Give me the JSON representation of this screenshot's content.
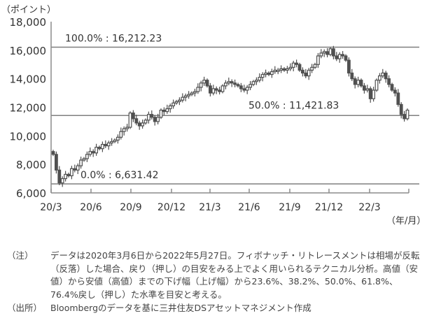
{
  "chart_data": {
    "type": "candlestick",
    "unit_label": "（ポイント）",
    "xlabel": "（年/月）",
    "ylim": [
      6000,
      18000
    ],
    "yticks": [
      6000,
      8000,
      10000,
      12000,
      14000,
      16000,
      18000
    ],
    "ytick_labels": [
      "6,000",
      "8,000",
      "10,000",
      "12,000",
      "14,000",
      "16,000",
      "18,000"
    ],
    "xtick_labels": [
      "20/3",
      "20/6",
      "20/9",
      "20/12",
      "21/3",
      "21/6",
      "21/9",
      "21/12",
      "22/3"
    ],
    "grid": false,
    "period": "weekly, 2020/3/6 – 2022/5/27 (approximate)",
    "closes": [
      8700,
      7600,
      6700,
      7000,
      7300,
      7200,
      7700,
      7600,
      7900,
      8300,
      8400,
      8700,
      8900,
      8800,
      9200,
      9100,
      9400,
      9300,
      9500,
      9600,
      9700,
      9900,
      10300,
      10500,
      10600,
      11600,
      11200,
      10900,
      10700,
      10900,
      11100,
      11500,
      11300,
      11000,
      11300,
      11800,
      11700,
      11900,
      12100,
      12300,
      12400,
      12500,
      12700,
      12800,
      12900,
      13000,
      13100,
      13400,
      13700,
      13900,
      13500,
      13000,
      13300,
      13200,
      13100,
      13500,
      13700,
      13800,
      13700,
      13600,
      13500,
      13300,
      13200,
      13400,
      13600,
      13800,
      13900,
      14100,
      14300,
      14400,
      14300,
      14500,
      14600,
      14600,
      14700,
      14600,
      14700,
      14800,
      15100,
      15000,
      14600,
      14400,
      14200,
      14600,
      14800,
      15000,
      15600,
      15800,
      15900,
      15700,
      16100,
      15600,
      15400,
      15700,
      15600,
      15300,
      14400,
      14000,
      13600,
      13900,
      13500,
      13200,
      13300,
      12600,
      13200,
      13900,
      14200,
      14400,
      14000,
      13600,
      13200,
      13000,
      12200,
      11500,
      11200,
      11800
    ],
    "levels": [
      {
        "value": 16212.23,
        "label": "100.0% : 16,212.23"
      },
      {
        "value": 11421.83,
        "label": "50.0% : 11,421.83"
      },
      {
        "value": 6631.42,
        "label": "0.0% : 6,631.42"
      }
    ],
    "colors": {
      "candle": "#505050",
      "line": "#7f7f7f",
      "axis": "#8c8c8c"
    }
  },
  "notes": {
    "note_label": "（注）",
    "note_lines": [
      "データは2020年3月6日から2022年5月27日。フィボナッチ・リトレースメントは相場が反転",
      "（反落）した場合、戻り（押し）の目安をみる上でよく用いられるテクニカル分析。高値（安",
      "値）から安値（高値）までの下げ幅（上げ幅）から23.6%、38.2%、50.0%、61.8%、",
      "76.4%戻し（押し）た水準を目安と考える。"
    ],
    "source_label": "（出所）",
    "source_text": "Bloombergのデータを基に三井住友DSアセットマネジメント作成"
  }
}
